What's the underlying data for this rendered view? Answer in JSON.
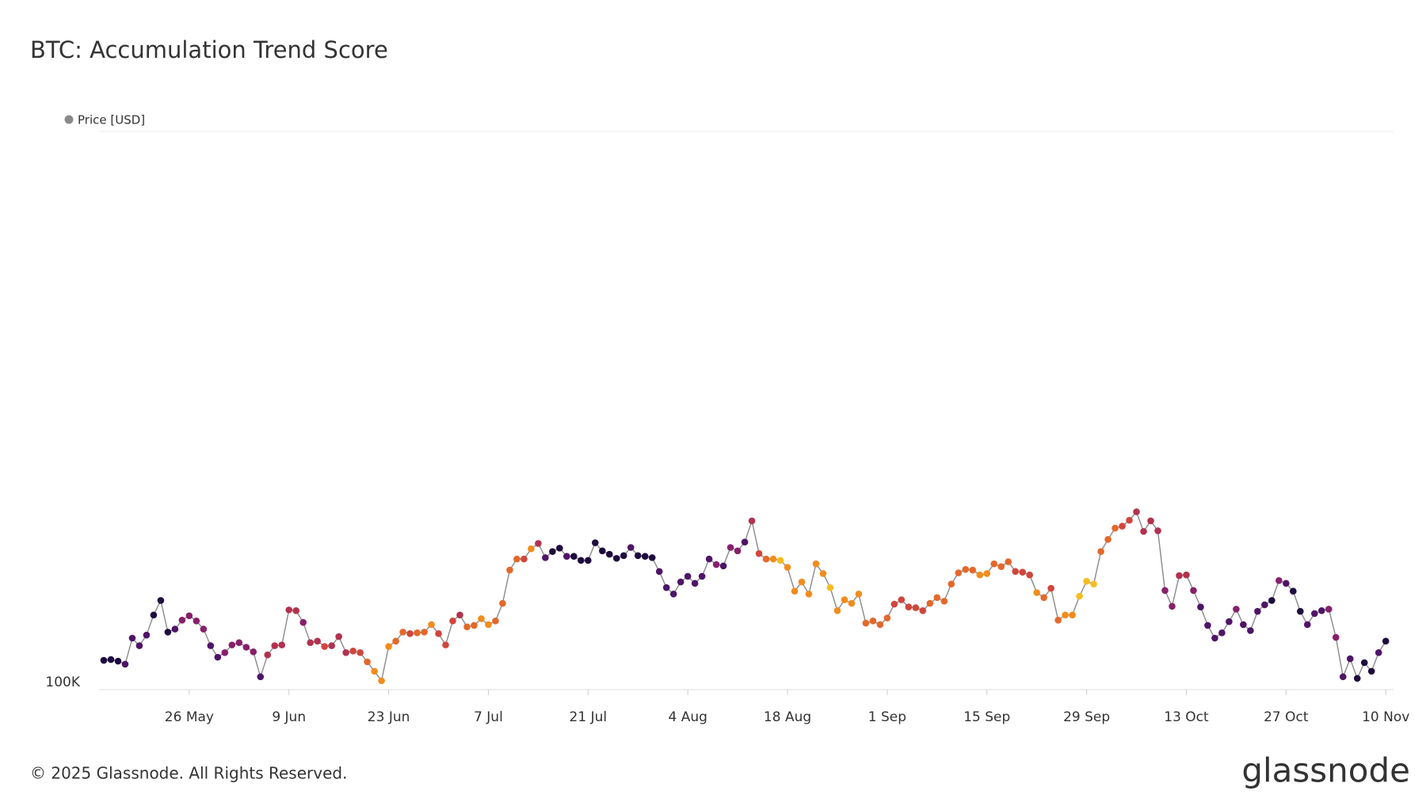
{
  "chart_data": {
    "type": "line",
    "title": "BTC: Accumulation Trend Score",
    "footer": "© 2025 Glassnode. All Rights Reserved.",
    "brand": "glassnode",
    "log_scale": true,
    "ylim": [
      100000,
      200000
    ],
    "yticks": [
      {
        "value": 100000,
        "label": "100K"
      }
    ],
    "xticks": [
      "26 May",
      "9 Jun",
      "23 Jun",
      "7 Jul",
      "21 Jul",
      "4 Aug",
      "18 Aug",
      "1 Sep",
      "15 Sep",
      "29 Sep",
      "13 Oct",
      "27 Oct",
      "10 Nov"
    ],
    "categories": [
      "14 May",
      "15 May",
      "16 May",
      "17 May",
      "18 May",
      "19 May",
      "20 May",
      "21 May",
      "22 May",
      "23 May",
      "24 May",
      "25 May",
      "26 May",
      "27 May",
      "28 May",
      "29 May",
      "30 May",
      "31 May",
      "1 Jun",
      "2 Jun",
      "3 Jun",
      "4 Jun",
      "5 Jun",
      "6 Jun",
      "7 Jun",
      "8 Jun",
      "9 Jun",
      "10 Jun",
      "11 Jun",
      "12 Jun",
      "13 Jun",
      "14 Jun",
      "15 Jun",
      "16 Jun",
      "17 Jun",
      "18 Jun",
      "19 Jun",
      "20 Jun",
      "21 Jun",
      "22 Jun",
      "23 Jun",
      "24 Jun",
      "25 Jun",
      "26 Jun",
      "27 Jun",
      "28 Jun",
      "29 Jun",
      "30 Jun",
      "1 Jul",
      "2 Jul",
      "3 Jul",
      "4 Jul",
      "5 Jul",
      "6 Jul",
      "7 Jul",
      "8 Jul",
      "9 Jul",
      "10 Jul",
      "11 Jul",
      "12 Jul",
      "13 Jul",
      "14 Jul",
      "15 Jul",
      "16 Jul",
      "17 Jul",
      "18 Jul",
      "19 Jul",
      "20 Jul",
      "21 Jul",
      "22 Jul",
      "23 Jul",
      "24 Jul",
      "25 Jul",
      "26 Jul",
      "27 Jul",
      "28 Jul",
      "29 Jul",
      "30 Jul",
      "31 Jul",
      "1 Aug",
      "2 Aug",
      "3 Aug",
      "4 Aug",
      "5 Aug",
      "6 Aug",
      "7 Aug",
      "8 Aug",
      "9 Aug",
      "10 Aug",
      "11 Aug",
      "12 Aug",
      "13 Aug",
      "14 Aug",
      "15 Aug",
      "16 Aug",
      "17 Aug",
      "18 Aug",
      "19 Aug",
      "20 Aug",
      "21 Aug",
      "22 Aug",
      "23 Aug",
      "24 Aug",
      "25 Aug",
      "26 Aug",
      "27 Aug",
      "28 Aug",
      "29 Aug",
      "30 Aug",
      "31 Aug",
      "1 Sep",
      "2 Sep",
      "3 Sep",
      "4 Sep",
      "5 Sep",
      "6 Sep",
      "7 Sep",
      "8 Sep",
      "9 Sep",
      "10 Sep",
      "11 Sep",
      "12 Sep",
      "13 Sep",
      "14 Sep",
      "15 Sep",
      "16 Sep",
      "17 Sep",
      "18 Sep",
      "19 Sep",
      "20 Sep",
      "21 Sep",
      "22 Sep",
      "23 Sep",
      "24 Sep",
      "25 Sep",
      "26 Sep",
      "27 Sep",
      "28 Sep",
      "29 Sep",
      "30 Sep",
      "1 Oct",
      "2 Oct",
      "3 Oct",
      "4 Oct",
      "5 Oct",
      "6 Oct",
      "7 Oct",
      "8 Oct",
      "9 Oct",
      "10 Oct",
      "11 Oct",
      "12 Oct",
      "13 Oct",
      "14 Oct",
      "15 Oct",
      "16 Oct",
      "17 Oct",
      "18 Oct",
      "19 Oct",
      "20 Oct",
      "21 Oct",
      "22 Oct",
      "23 Oct",
      "24 Oct",
      "25 Oct",
      "26 Oct",
      "27 Oct",
      "28 Oct",
      "29 Oct",
      "30 Oct",
      "31 Oct",
      "1 Nov",
      "2 Nov",
      "3 Nov",
      "4 Nov",
      "5 Nov",
      "6 Nov",
      "7 Nov",
      "8 Nov",
      "9 Nov",
      "10 Nov"
    ],
    "series": [
      {
        "name": "Price [USD]",
        "color": "#8a8a8a",
        "values": [
          103700,
          103800,
          103600,
          103200,
          106600,
          105600,
          107000,
          109700,
          111700,
          107400,
          107800,
          109000,
          109600,
          108900,
          107800,
          105600,
          104100,
          104700,
          105700,
          106000,
          105400,
          104800,
          101600,
          104400,
          105600,
          105700,
          110400,
          110300,
          108700,
          106000,
          106200,
          105500,
          105600,
          106800,
          104700,
          104900,
          104700,
          103500,
          102300,
          101100,
          105500,
          106200,
          107400,
          107200,
          107300,
          107400,
          108400,
          107200,
          105700,
          108900,
          109700,
          108100,
          108300,
          109200,
          108400,
          108900,
          111300,
          116000,
          117600,
          117600,
          119100,
          119900,
          117800,
          118700,
          119200,
          118000,
          118000,
          117400,
          117400,
          120000,
          118800,
          118300,
          117700,
          118100,
          119300,
          118100,
          118000,
          117800,
          115800,
          113500,
          112600,
          114300,
          115100,
          114100,
          115100,
          117600,
          116800,
          116600,
          119300,
          118800,
          120100,
          123300,
          118400,
          117600,
          117600,
          117400,
          116400,
          113000,
          114300,
          112600,
          116900,
          115500,
          113500,
          110300,
          111800,
          111300,
          112600,
          108600,
          108900,
          108400,
          109300,
          111200,
          111800,
          110800,
          110700,
          110300,
          111300,
          112100,
          111600,
          114000,
          115600,
          116100,
          116000,
          115300,
          115500,
          116900,
          116500,
          117200,
          115800,
          115700,
          115300,
          112800,
          112100,
          113400,
          109000,
          109700,
          109700,
          112300,
          114400,
          114000,
          118700,
          120500,
          122200,
          122500,
          123400,
          124700,
          121700,
          123300,
          121800,
          113100,
          110900,
          115200,
          115300,
          113100,
          110800,
          108300,
          106600,
          107300,
          108800,
          110500,
          108400,
          107600,
          110200,
          111100,
          111700,
          114500,
          114100,
          113000,
          110200,
          108400,
          109900,
          110300,
          110500,
          106700,
          101600,
          103900,
          101400,
          103400,
          102300,
          104700,
          106200
        ],
        "point_colors": [
          "#1e0b3e",
          "#1e0b3e",
          "#1e0b3e",
          "#4f1468",
          "#4f1468",
          "#4f1468",
          "#4f1468",
          "#1e0b3e",
          "#1e0b3e",
          "#1e0b3e",
          "#4f1468",
          "#86206a",
          "#86206a",
          "#86206a",
          "#86206a",
          "#4f1468",
          "#4f1468",
          "#86206a",
          "#86206a",
          "#86206a",
          "#86206a",
          "#86206a",
          "#4f1468",
          "#b2324f",
          "#b2324f",
          "#b2324f",
          "#b2324f",
          "#b2324f",
          "#86206a",
          "#b2324f",
          "#b2324f",
          "#d0463c",
          "#b2324f",
          "#b2324f",
          "#b2324f",
          "#d0463c",
          "#d0463c",
          "#e4682a",
          "#f28c1c",
          "#f28c1c",
          "#f28c1c",
          "#e4682a",
          "#e4682a",
          "#d0463c",
          "#e4682a",
          "#e4682a",
          "#f28c1c",
          "#d0463c",
          "#d0463c",
          "#d0463c",
          "#b2324f",
          "#e4682a",
          "#e4682a",
          "#f28c1c",
          "#f28c1c",
          "#e4682a",
          "#e4682a",
          "#e4682a",
          "#e4682a",
          "#d0463c",
          "#f28c1c",
          "#b2324f",
          "#4f1468",
          "#1e0b3e",
          "#1e0b3e",
          "#4f1468",
          "#1e0b3e",
          "#1e0b3e",
          "#1e0b3e",
          "#1e0b3e",
          "#1e0b3e",
          "#1e0b3e",
          "#1e0b3e",
          "#1e0b3e",
          "#4f1468",
          "#1e0b3e",
          "#1e0b3e",
          "#1e0b3e",
          "#4f1468",
          "#4f1468",
          "#4f1468",
          "#4f1468",
          "#4f1468",
          "#4f1468",
          "#4f1468",
          "#4f1468",
          "#86206a",
          "#4f1468",
          "#86206a",
          "#86206a",
          "#4f1468",
          "#b2324f",
          "#d0463c",
          "#e4682a",
          "#f28c1c",
          "#f7bd20",
          "#f28c1c",
          "#f28c1c",
          "#f28c1c",
          "#f28c1c",
          "#f28c1c",
          "#f28c1c",
          "#f7bd20",
          "#f28c1c",
          "#f28c1c",
          "#f28c1c",
          "#f28c1c",
          "#e4682a",
          "#e4682a",
          "#e4682a",
          "#e4682a",
          "#d0463c",
          "#d0463c",
          "#d0463c",
          "#d0463c",
          "#d0463c",
          "#e4682a",
          "#e4682a",
          "#e4682a",
          "#e4682a",
          "#e4682a",
          "#e4682a",
          "#e4682a",
          "#f28c1c",
          "#f28c1c",
          "#e4682a",
          "#e4682a",
          "#e4682a",
          "#d0463c",
          "#d0463c",
          "#d0463c",
          "#f28c1c",
          "#e4682a",
          "#d0463c",
          "#e4682a",
          "#f28c1c",
          "#f28c1c",
          "#f7bd20",
          "#f7bd20",
          "#f7bd20",
          "#e4682a",
          "#e4682a",
          "#e4682a",
          "#d0463c",
          "#d0463c",
          "#b2324f",
          "#b2324f",
          "#b2324f",
          "#b2324f",
          "#86206a",
          "#86206a",
          "#b2324f",
          "#b2324f",
          "#86206a",
          "#4f1468",
          "#4f1468",
          "#4f1468",
          "#4f1468",
          "#4f1468",
          "#86206a",
          "#4f1468",
          "#4f1468",
          "#4f1468",
          "#4f1468",
          "#1e0b3e",
          "#86206a",
          "#4f1468",
          "#1e0b3e",
          "#1e0b3e",
          "#4f1468",
          "#4f1468",
          "#4f1468",
          "#86206a",
          "#86206a",
          "#4f1468",
          "#4f1468",
          "#1e0b3e",
          "#1e0b3e",
          "#1e0b3e",
          "#4f1468",
          "#1e0b3e"
        ]
      }
    ]
  }
}
